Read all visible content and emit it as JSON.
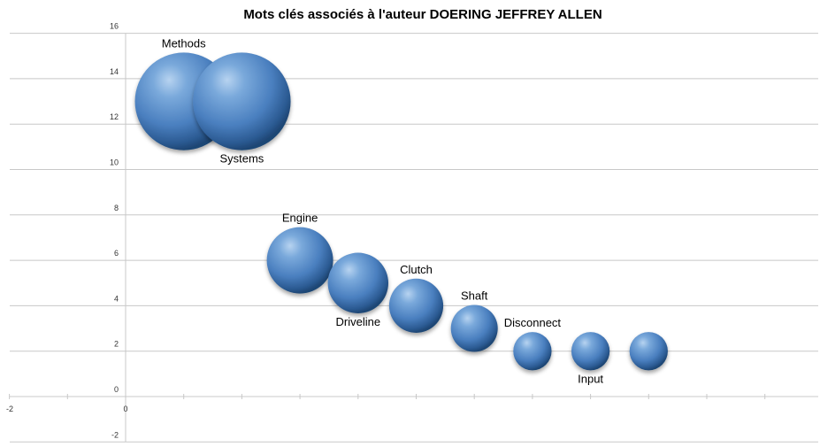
{
  "chart_data": {
    "type": "bubble",
    "title": "Mots clés associés à l'auteur DOERING JEFFREY ALLEN",
    "xlim": [
      -2,
      12
    ],
    "ylim": [
      -2,
      16
    ],
    "x_ticks": [
      -2,
      0
    ],
    "y_ticks": [
      16,
      14,
      12,
      10,
      8,
      6,
      4,
      2,
      0,
      -2
    ],
    "grid": true,
    "bubble_color": "#4f81bd",
    "points": [
      {
        "label": "Methods",
        "x": 1,
        "y": 13,
        "size": 13,
        "label_pos": "above"
      },
      {
        "label": "Systems",
        "x": 2,
        "y": 13,
        "size": 13,
        "label_pos": "below"
      },
      {
        "label": "Engine",
        "x": 3,
        "y": 6,
        "size": 6,
        "label_pos": "above"
      },
      {
        "label": "Driveline",
        "x": 4,
        "y": 5,
        "size": 5,
        "label_pos": "below"
      },
      {
        "label": "Clutch",
        "x": 5,
        "y": 4,
        "size": 4,
        "label_pos": "above"
      },
      {
        "label": "Shaft",
        "x": 6,
        "y": 3,
        "size": 3,
        "label_pos": "above"
      },
      {
        "label": "Disconnect",
        "x": 7,
        "y": 2,
        "size": 2,
        "label_pos": "above"
      },
      {
        "label": "Input",
        "x": 8,
        "y": 2,
        "size": 2,
        "label_pos": "below"
      },
      {
        "label": "",
        "x": 9,
        "y": 2,
        "size": 2,
        "label_pos": "none"
      }
    ]
  }
}
